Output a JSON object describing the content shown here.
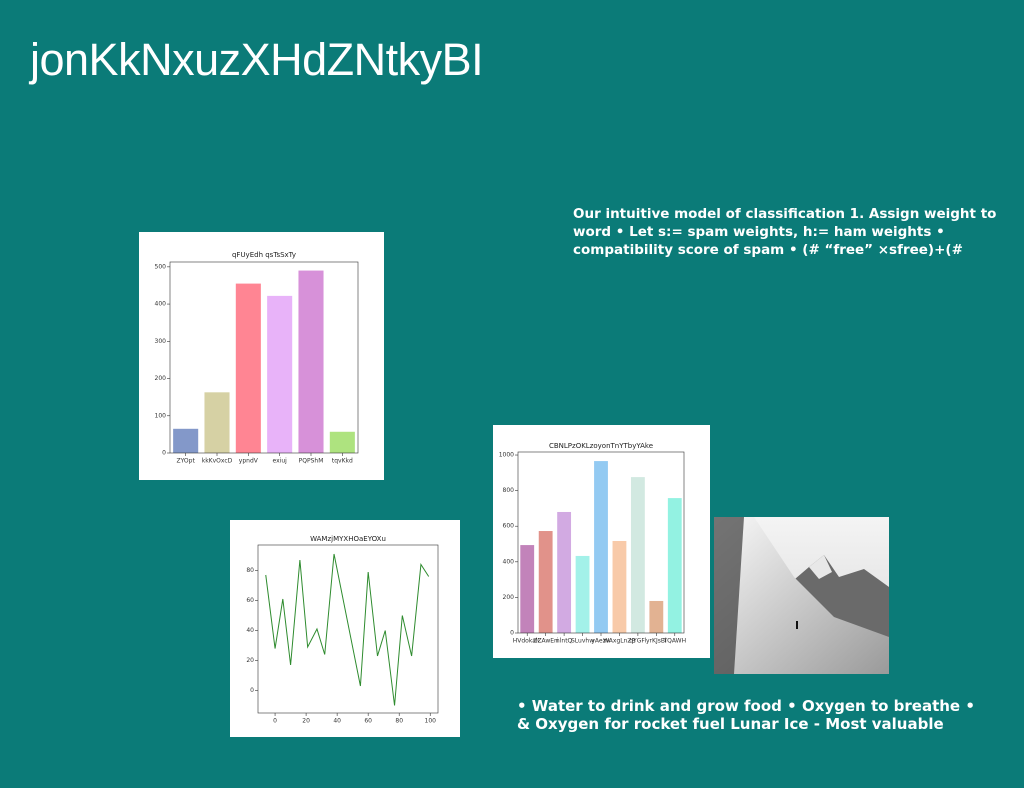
{
  "title": "jonKkNxuzXHdZNtkyBI",
  "text_blocks": [
    {
      "lines": [
        "Our intuitive model of classification 1. Assign weight to",
        "word • Let s:= spam weights, h:= ham weights •",
        "compatibility score of spam • (# “free” ×sfree)+(#"
      ]
    },
    {
      "lines": [
        "• Water to drink and grow food • Oxygen to breathe •",
        "& Oxygen for rocket fuel Lunar Ice - Most valuable"
      ]
    }
  ],
  "chart_data": [
    {
      "type": "bar",
      "title": "qFUyEdh qsTsSxTy",
      "categories": [
        "ZYOpt",
        "kkKvOxcD",
        "ypndV",
        "exiuj",
        "PQPShM",
        "tqvKkd"
      ],
      "values": [
        65,
        163,
        455,
        422,
        490,
        57
      ],
      "colors": [
        "#8398c9",
        "#d6d1a4",
        "#ff8593",
        "#e8b3f9",
        "#d791d9",
        "#aee37f"
      ],
      "ylim": [
        0,
        513
      ],
      "yticks": [
        0,
        100,
        200,
        300,
        400,
        500
      ]
    },
    {
      "type": "line",
      "title": "WAMzjMYXHOaEYOXu",
      "x": [
        -6,
        0,
        5,
        10,
        16,
        21,
        27,
        32,
        38,
        55,
        60,
        66,
        71,
        77,
        82,
        88,
        94,
        99
      ],
      "values": [
        77,
        28,
        61,
        17,
        87,
        29,
        41,
        24,
        91,
        3,
        79,
        23,
        40,
        -10,
        50,
        23,
        84,
        76
      ],
      "color": "#2e8b2e",
      "xlim": [
        -11,
        105
      ],
      "xticks": [
        0,
        20,
        40,
        60,
        80,
        100
      ],
      "ylim": [
        -15,
        97
      ],
      "yticks": [
        0,
        20,
        40,
        60,
        80
      ]
    },
    {
      "type": "bar",
      "title": "CBNLPzOKLzoyonTnYTbyYAke",
      "categories": [
        "HVdokalZ",
        "ZCAwEri",
        "nlntQ",
        "SLuvhw",
        "yAezw",
        "WAxgLnZB",
        "qYGFl",
        "yrKJsBi",
        "TQAWH"
      ],
      "values": [
        494,
        573,
        680,
        433,
        966,
        517,
        876,
        180,
        758
      ],
      "colors": [
        "#c283ba",
        "#e1928a",
        "#d2aae2",
        "#a3f1e9",
        "#93caf2",
        "#f8caa9",
        "#d2e9e1",
        "#e2b292",
        "#93f2e2"
      ],
      "ylim": [
        0,
        1017
      ],
      "yticks": [
        0,
        200,
        400,
        600,
        800,
        1000
      ]
    }
  ]
}
